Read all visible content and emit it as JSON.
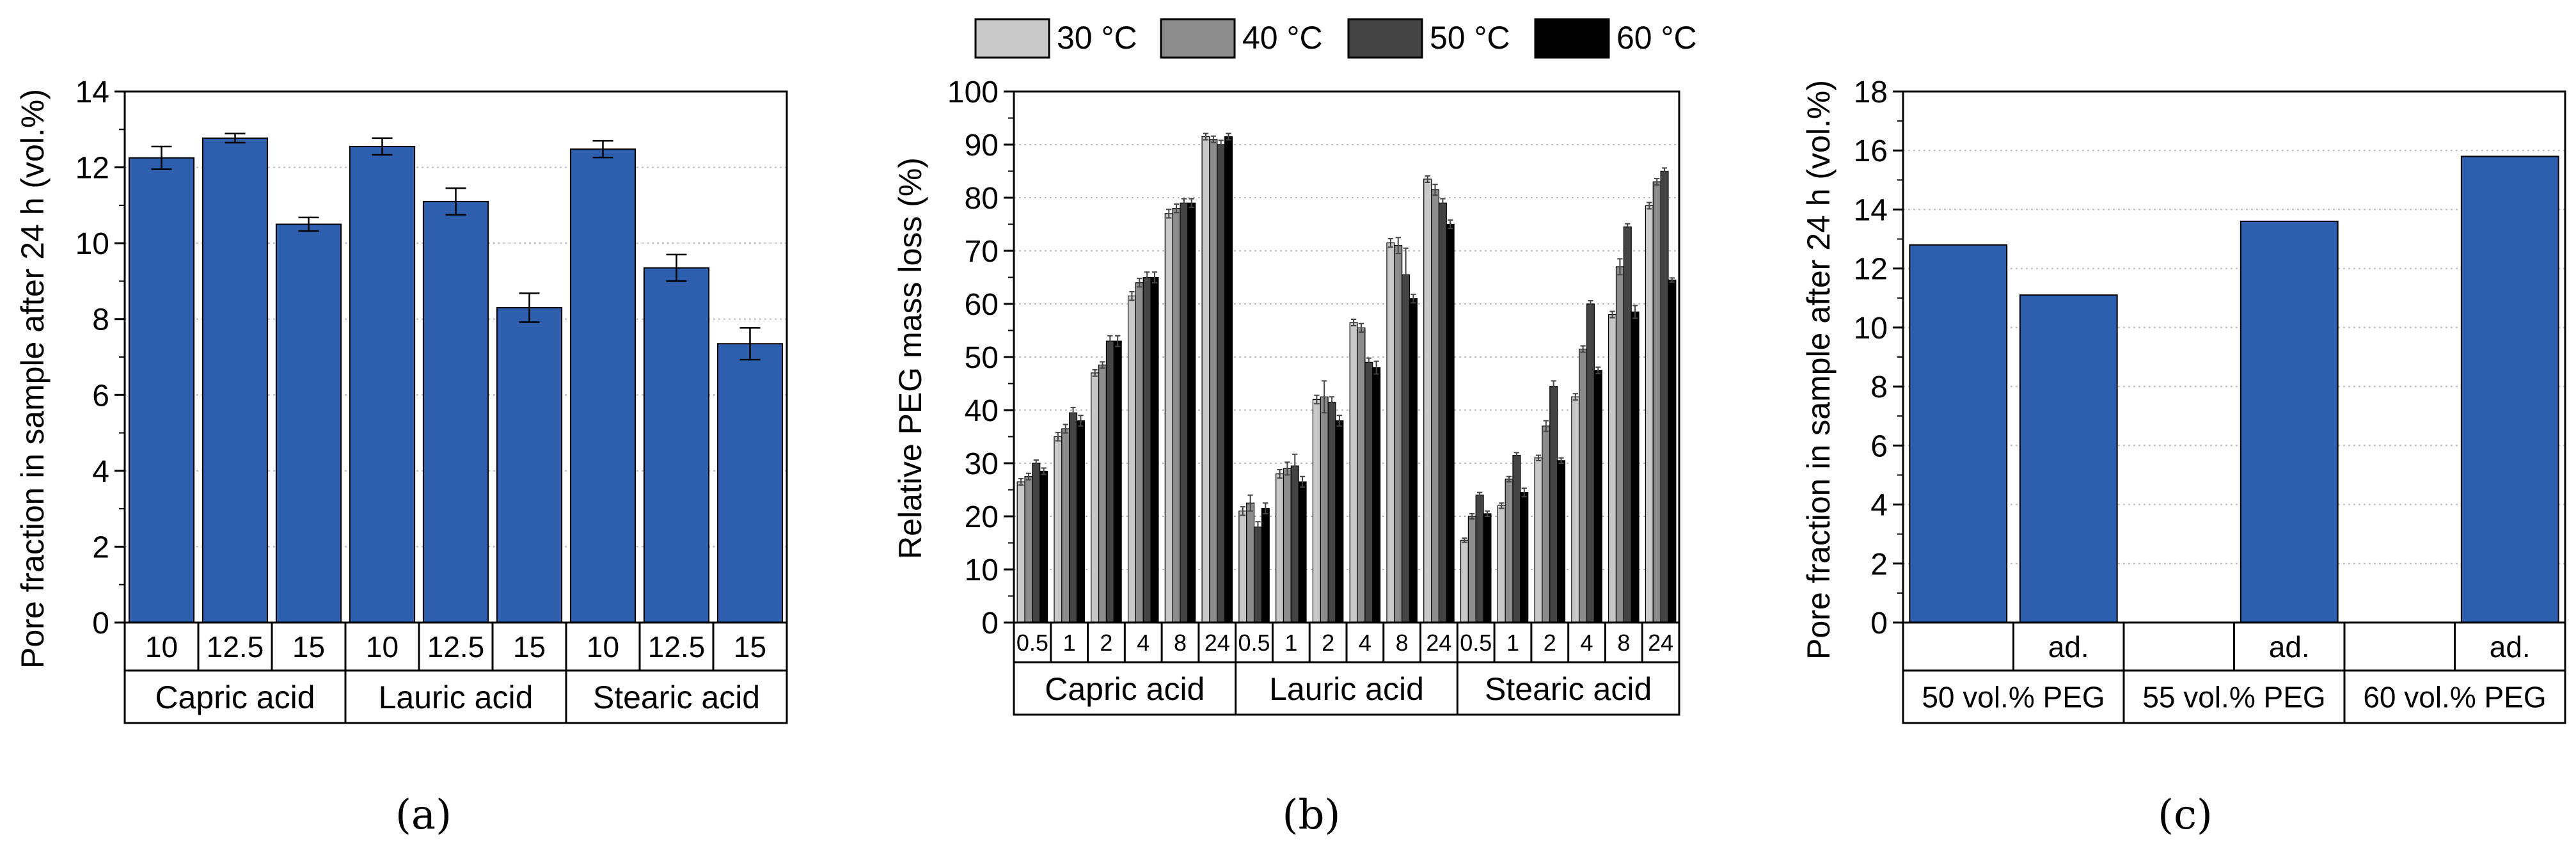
{
  "legend": {
    "items": [
      {
        "label": "30 °C",
        "color": "#c8c8c8"
      },
      {
        "label": "40 °C",
        "color": "#8c8c8c"
      },
      {
        "label": "50 °C",
        "color": "#444444"
      },
      {
        "label": "60 °C",
        "color": "#000000"
      }
    ]
  },
  "chart_data": [
    {
      "type": "bar",
      "caption": "(a)",
      "ylabel": "Pore fraction in sample after 24 h (vol.%)",
      "ylim": [
        0,
        14
      ],
      "yticks": [
        0,
        2,
        4,
        6,
        8,
        10,
        12,
        14
      ],
      "bar_color": "#2e5fae",
      "categories": [
        "10",
        "12.5",
        "15",
        "10",
        "12.5",
        "15",
        "10",
        "12.5",
        "15"
      ],
      "groups": [
        "Capric acid",
        "Lauric acid",
        "Stearic acid"
      ],
      "values": [
        12.25,
        12.77,
        10.5,
        12.55,
        11.1,
        8.3,
        12.48,
        9.35,
        7.35
      ],
      "errors": [
        0.3,
        0.12,
        0.18,
        0.22,
        0.35,
        0.38,
        0.22,
        0.35,
        0.42
      ]
    },
    {
      "type": "bar",
      "caption": "(b)",
      "ylabel": "Relative PEG mass loss (%)",
      "ylim": [
        0,
        100
      ],
      "yticks": [
        0,
        10,
        20,
        30,
        40,
        50,
        60,
        70,
        80,
        90,
        100
      ],
      "categories": [
        "0.5",
        "1",
        "2",
        "4",
        "8",
        "24",
        "0.5",
        "1",
        "2",
        "4",
        "8",
        "24",
        "0.5",
        "1",
        "2",
        "4",
        "8",
        "24"
      ],
      "groups": [
        "Capric acid",
        "Lauric acid",
        "Stearic acid"
      ],
      "series": [
        {
          "name": "30 °C",
          "values": [
            26.5,
            35,
            47,
            61.5,
            77,
            91.5,
            21,
            28,
            42,
            56.5,
            71.5,
            83.5,
            15.5,
            22,
            31,
            42.5,
            58,
            78.5
          ],
          "errors": [
            0.6,
            0.8,
            0.6,
            0.8,
            0.8,
            0.6,
            0.8,
            0.8,
            0.8,
            0.6,
            0.8,
            0.6,
            0.4,
            0.5,
            0.5,
            0.6,
            0.6,
            0.6
          ]
        },
        {
          "name": "40 °C",
          "values": [
            27.5,
            36.5,
            48.5,
            64,
            78,
            91,
            22.5,
            29,
            42.5,
            55.5,
            71,
            81.5,
            20,
            27,
            37,
            51.5,
            67,
            83
          ],
          "errors": [
            0.6,
            0.8,
            0.6,
            0.8,
            0.8,
            0.6,
            1.5,
            1.2,
            3.0,
            0.8,
            1.5,
            1.0,
            0.5,
            0.5,
            1.0,
            0.6,
            1.5,
            0.6
          ]
        },
        {
          "name": "50 °C",
          "values": [
            30,
            39.5,
            53,
            65,
            79,
            90,
            18,
            29.5,
            41.5,
            49,
            65.5,
            79,
            24,
            31.5,
            44.5,
            60,
            74.5,
            85
          ],
          "errors": [
            0.6,
            1.0,
            1.0,
            1.0,
            0.8,
            0.8,
            1.0,
            2.2,
            1.0,
            0.8,
            5.0,
            0.8,
            0.5,
            0.5,
            1.0,
            0.6,
            0.6,
            0.6
          ]
        },
        {
          "name": "60 °C",
          "values": [
            28.5,
            38,
            53,
            65,
            79,
            91.5,
            21.5,
            26.5,
            38,
            48,
            61,
            75,
            20.5,
            24.5,
            30.5,
            47.5,
            58.5,
            64.5
          ],
          "errors": [
            0.6,
            1.0,
            1.0,
            1.0,
            0.8,
            0.6,
            1.0,
            1.0,
            1.0,
            1.2,
            0.8,
            0.8,
            0.5,
            0.8,
            0.5,
            0.6,
            1.2,
            0.4
          ]
        }
      ]
    },
    {
      "type": "bar",
      "caption": "(c)",
      "ylabel": "Pore fraction in sample after 24 h (vol.%)",
      "ylim": [
        0,
        18
      ],
      "yticks": [
        0,
        2,
        4,
        6,
        8,
        10,
        12,
        14,
        16,
        18
      ],
      "bar_color": "#2e5fae",
      "categories": [
        "",
        "ad.",
        "",
        "ad.",
        "",
        "ad."
      ],
      "groups": [
        "50 vol.% PEG",
        "55 vol.% PEG",
        "60 vol.% PEG"
      ],
      "values": [
        12.8,
        11.1,
        null,
        13.6,
        null,
        15.8
      ]
    }
  ]
}
